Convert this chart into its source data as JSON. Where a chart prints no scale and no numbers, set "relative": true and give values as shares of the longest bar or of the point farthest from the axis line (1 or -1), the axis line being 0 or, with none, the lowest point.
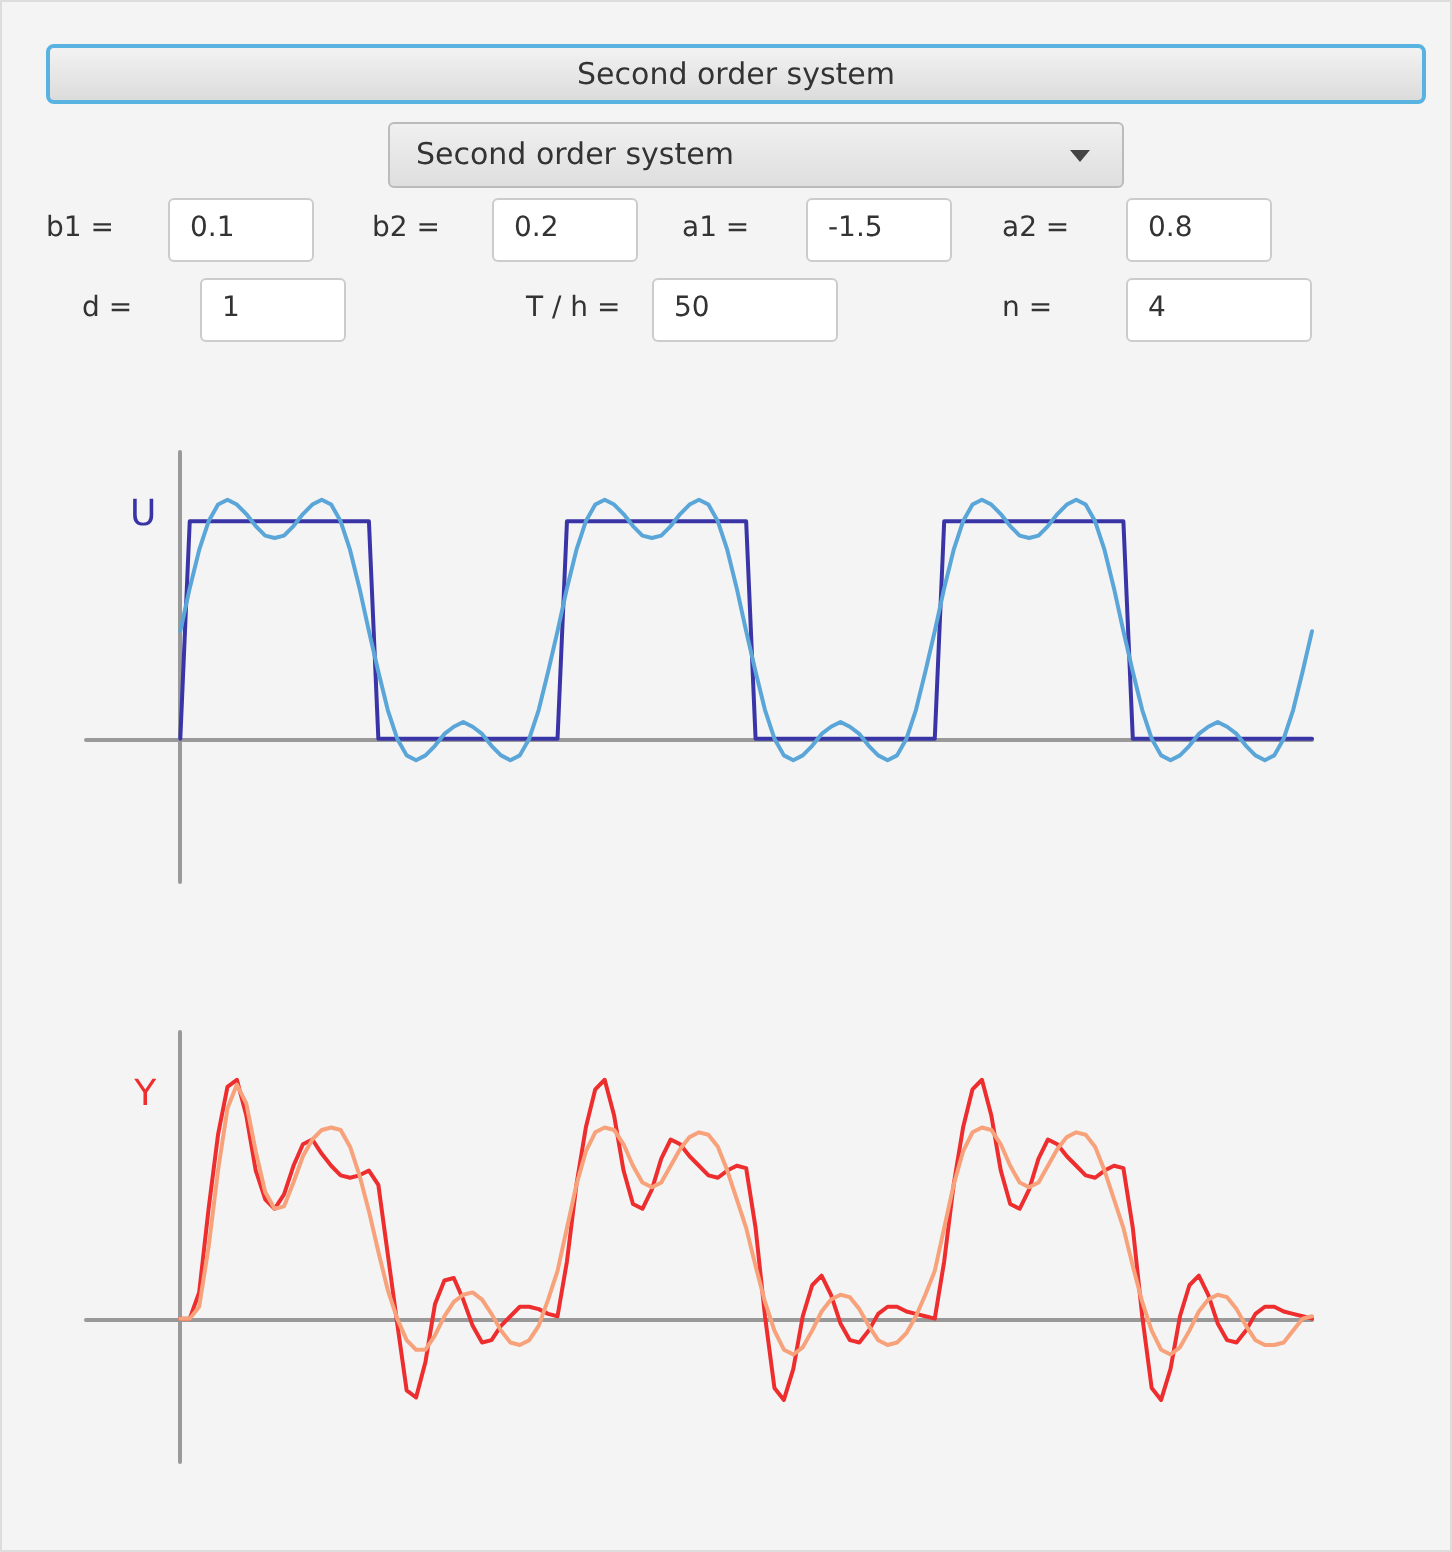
{
  "chart_data": [
    {
      "type": "other",
      "title": "Second order system",
      "annotations": [
        "Second order system",
        "b1 =",
        "0.1",
        "b2 =",
        "0.2",
        "a1 =",
        "-1.5",
        "a2 =",
        "0.8",
        "d =",
        "1",
        "T / h =",
        "50",
        "n =",
        "4"
      ]
    },
    {
      "type": "line",
      "ylabel": "U",
      "relative": true,
      "tick_labels": false,
      "categories": [
        null,
        null,
        null,
        null,
        null,
        null,
        null,
        null,
        null,
        null,
        null,
        null,
        null,
        null,
        null,
        null,
        null,
        null,
        null,
        null,
        null,
        null,
        null,
        null,
        null,
        null,
        null,
        null,
        null,
        null,
        null,
        null,
        null,
        null,
        null,
        null,
        null,
        null,
        null,
        null,
        null,
        null,
        null,
        null,
        null,
        null,
        null,
        null,
        null,
        null,
        null,
        null,
        null,
        null,
        null,
        null,
        null,
        null,
        null,
        null,
        null,
        null,
        null,
        null,
        null,
        null,
        null,
        null,
        null,
        null,
        null,
        null,
        null,
        null,
        null,
        null,
        null,
        null,
        null,
        null,
        null,
        null,
        null,
        null,
        null,
        null,
        null,
        null,
        null,
        null,
        null,
        null,
        null,
        null,
        null,
        null,
        null,
        null,
        null,
        null,
        null,
        null,
        null,
        null,
        null,
        null,
        null,
        null,
        null,
        null,
        null,
        null,
        null,
        null,
        null,
        null,
        null,
        null,
        null,
        null,
        null
      ],
      "series": [
        {
          "color": "#3a35a6",
          "values": [
            0,
            0.91,
            0.91,
            0.91,
            0.91,
            0.91,
            0.91,
            0.91,
            0.91,
            0.91,
            0.91,
            0.91,
            0.91,
            0.91,
            0.91,
            0.91,
            0.91,
            0.91,
            0.91,
            0.91,
            0.91,
            0,
            0,
            0,
            0,
            0,
            0,
            0,
            0,
            0,
            0,
            0,
            0,
            0,
            0,
            0,
            0,
            0,
            0,
            0,
            0,
            0.91,
            0.91,
            0.91,
            0.91,
            0.91,
            0.91,
            0.91,
            0.91,
            0.91,
            0.91,
            0.91,
            0.91,
            0.91,
            0.91,
            0.91,
            0.91,
            0.91,
            0.91,
            0.91,
            0.91,
            0,
            0,
            0,
            0,
            0,
            0,
            0,
            0,
            0,
            0,
            0,
            0,
            0,
            0,
            0,
            0,
            0,
            0,
            0,
            0,
            0.91,
            0.91,
            0.91,
            0.91,
            0.91,
            0.91,
            0.91,
            0.91,
            0.91,
            0.91,
            0.91,
            0.91,
            0.91,
            0.91,
            0.91,
            0.91,
            0.91,
            0.91,
            0.91,
            0.91,
            0,
            0,
            0,
            0,
            0,
            0,
            0,
            0,
            0,
            0,
            0,
            0,
            0,
            0,
            0,
            0,
            0,
            0,
            0,
            0
          ]
        },
        {
          "color": "#5ba6d9",
          "values": [
            0.45,
            0.63,
            0.79,
            0.91,
            0.98,
            1,
            0.98,
            0.94,
            0.89,
            0.85,
            0.84,
            0.85,
            0.89,
            0.94,
            0.98,
            1,
            0.98,
            0.91,
            0.79,
            0.63,
            0.45,
            0.28,
            0.12,
            0,
            -0.07,
            -0.09,
            -0.07,
            -0.03,
            0.02,
            0.05,
            0.07,
            0.05,
            0.02,
            -0.03,
            -0.07,
            -0.09,
            -0.07,
            0,
            0.12,
            0.28,
            0.45,
            0.63,
            0.79,
            0.91,
            0.98,
            1,
            0.98,
            0.94,
            0.89,
            0.85,
            0.84,
            0.85,
            0.89,
            0.94,
            0.98,
            1,
            0.98,
            0.91,
            0.79,
            0.63,
            0.45,
            0.28,
            0.12,
            0,
            -0.07,
            -0.09,
            -0.07,
            -0.03,
            0.02,
            0.05,
            0.07,
            0.05,
            0.02,
            -0.03,
            -0.07,
            -0.09,
            -0.07,
            0,
            0.12,
            0.28,
            0.45,
            0.63,
            0.79,
            0.91,
            0.98,
            1,
            0.98,
            0.94,
            0.89,
            0.85,
            0.84,
            0.85,
            0.89,
            0.94,
            0.98,
            1,
            0.98,
            0.91,
            0.79,
            0.63,
            0.45,
            0.28,
            0.12,
            0,
            -0.07,
            -0.09,
            -0.07,
            -0.03,
            0.02,
            0.05,
            0.07,
            0.05,
            0.02,
            -0.03,
            -0.07,
            -0.09,
            -0.07,
            0,
            0.12,
            0.28,
            0.45
          ]
        }
      ]
    },
    {
      "type": "line",
      "ylabel": "Y",
      "relative": true,
      "tick_labels": false,
      "categories": [
        null,
        null,
        null,
        null,
        null,
        null,
        null,
        null,
        null,
        null,
        null,
        null,
        null,
        null,
        null,
        null,
        null,
        null,
        null,
        null,
        null,
        null,
        null,
        null,
        null,
        null,
        null,
        null,
        null,
        null,
        null,
        null,
        null,
        null,
        null,
        null,
        null,
        null,
        null,
        null,
        null,
        null,
        null,
        null,
        null,
        null,
        null,
        null,
        null,
        null,
        null,
        null,
        null,
        null,
        null,
        null,
        null,
        null,
        null,
        null,
        null,
        null,
        null,
        null,
        null,
        null,
        null,
        null,
        null,
        null,
        null,
        null,
        null,
        null,
        null,
        null,
        null,
        null,
        null,
        null,
        null,
        null,
        null,
        null,
        null,
        null,
        null,
        null,
        null,
        null,
        null,
        null,
        null,
        null,
        null,
        null,
        null,
        null,
        null,
        null,
        null,
        null,
        null,
        null,
        null,
        null,
        null,
        null,
        null,
        null,
        null,
        null,
        null,
        null,
        null,
        null,
        null,
        null,
        null,
        null,
        null
      ],
      "series": [
        {
          "color": "#ee2e2e",
          "values": [
            0,
            0,
            0.11,
            0.46,
            0.77,
            0.97,
            1,
            0.85,
            0.62,
            0.5,
            0.46,
            0.52,
            0.64,
            0.73,
            0.75,
            0.69,
            0.64,
            0.6,
            0.59,
            0.6,
            0.62,
            0.56,
            0.27,
            -0.02,
            -0.3,
            -0.33,
            -0.18,
            0.06,
            0.16,
            0.17,
            0.08,
            -0.03,
            -0.1,
            -0.09,
            -0.03,
            0.01,
            0.05,
            0.05,
            0.04,
            0.02,
            0.01,
            0.24,
            0.56,
            0.8,
            0.96,
            1,
            0.85,
            0.62,
            0.48,
            0.46,
            0.54,
            0.67,
            0.75,
            0.73,
            0.68,
            0.64,
            0.6,
            0.59,
            0.62,
            0.64,
            0.63,
            0.38,
            0.01,
            -0.29,
            -0.34,
            -0.21,
            0.01,
            0.14,
            0.18,
            0.1,
            -0.02,
            -0.09,
            -0.1,
            -0.05,
            0.02,
            0.05,
            0.05,
            0.03,
            0.02,
            0.01,
            0,
            0.24,
            0.56,
            0.8,
            0.96,
            1,
            0.85,
            0.62,
            0.48,
            0.46,
            0.54,
            0.67,
            0.75,
            0.73,
            0.68,
            0.64,
            0.6,
            0.59,
            0.62,
            0.64,
            0.63,
            0.38,
            0.01,
            -0.29,
            -0.34,
            -0.21,
            0.01,
            0.14,
            0.18,
            0.1,
            -0.02,
            -0.09,
            -0.1,
            -0.05,
            0.02,
            0.05,
            0.05,
            0.03,
            0.02,
            0.01,
            0
          ]
        },
        {
          "color": "#f7a27a",
          "values": [
            0,
            0,
            0.05,
            0.3,
            0.62,
            0.88,
            0.98,
            0.9,
            0.7,
            0.53,
            0.46,
            0.47,
            0.57,
            0.68,
            0.75,
            0.79,
            0.8,
            0.79,
            0.72,
            0.6,
            0.45,
            0.28,
            0.12,
            0,
            -0.09,
            -0.13,
            -0.13,
            -0.07,
            0.01,
            0.07,
            0.1,
            0.11,
            0.08,
            0.02,
            -0.05,
            -0.1,
            -0.11,
            -0.09,
            -0.03,
            0.08,
            0.2,
            0.38,
            0.56,
            0.7,
            0.78,
            0.8,
            0.79,
            0.73,
            0.64,
            0.57,
            0.55,
            0.57,
            0.64,
            0.71,
            0.76,
            0.78,
            0.77,
            0.72,
            0.62,
            0.5,
            0.38,
            0.22,
            0.07,
            -0.05,
            -0.13,
            -0.15,
            -0.12,
            -0.05,
            0.03,
            0.08,
            0.1,
            0.09,
            0.04,
            -0.03,
            -0.09,
            -0.11,
            -0.1,
            -0.06,
            0.01,
            0.1,
            0.2,
            0.38,
            0.56,
            0.7,
            0.78,
            0.8,
            0.79,
            0.73,
            0.64,
            0.57,
            0.55,
            0.57,
            0.64,
            0.71,
            0.76,
            0.78,
            0.77,
            0.72,
            0.62,
            0.5,
            0.38,
            0.22,
            0.07,
            -0.05,
            -0.13,
            -0.15,
            -0.12,
            -0.05,
            0.03,
            0.08,
            0.1,
            0.09,
            0.04,
            -0.03,
            -0.09,
            -0.11,
            -0.11,
            -0.1,
            -0.05,
            0,
            0.01
          ]
        }
      ]
    }
  ]
}
